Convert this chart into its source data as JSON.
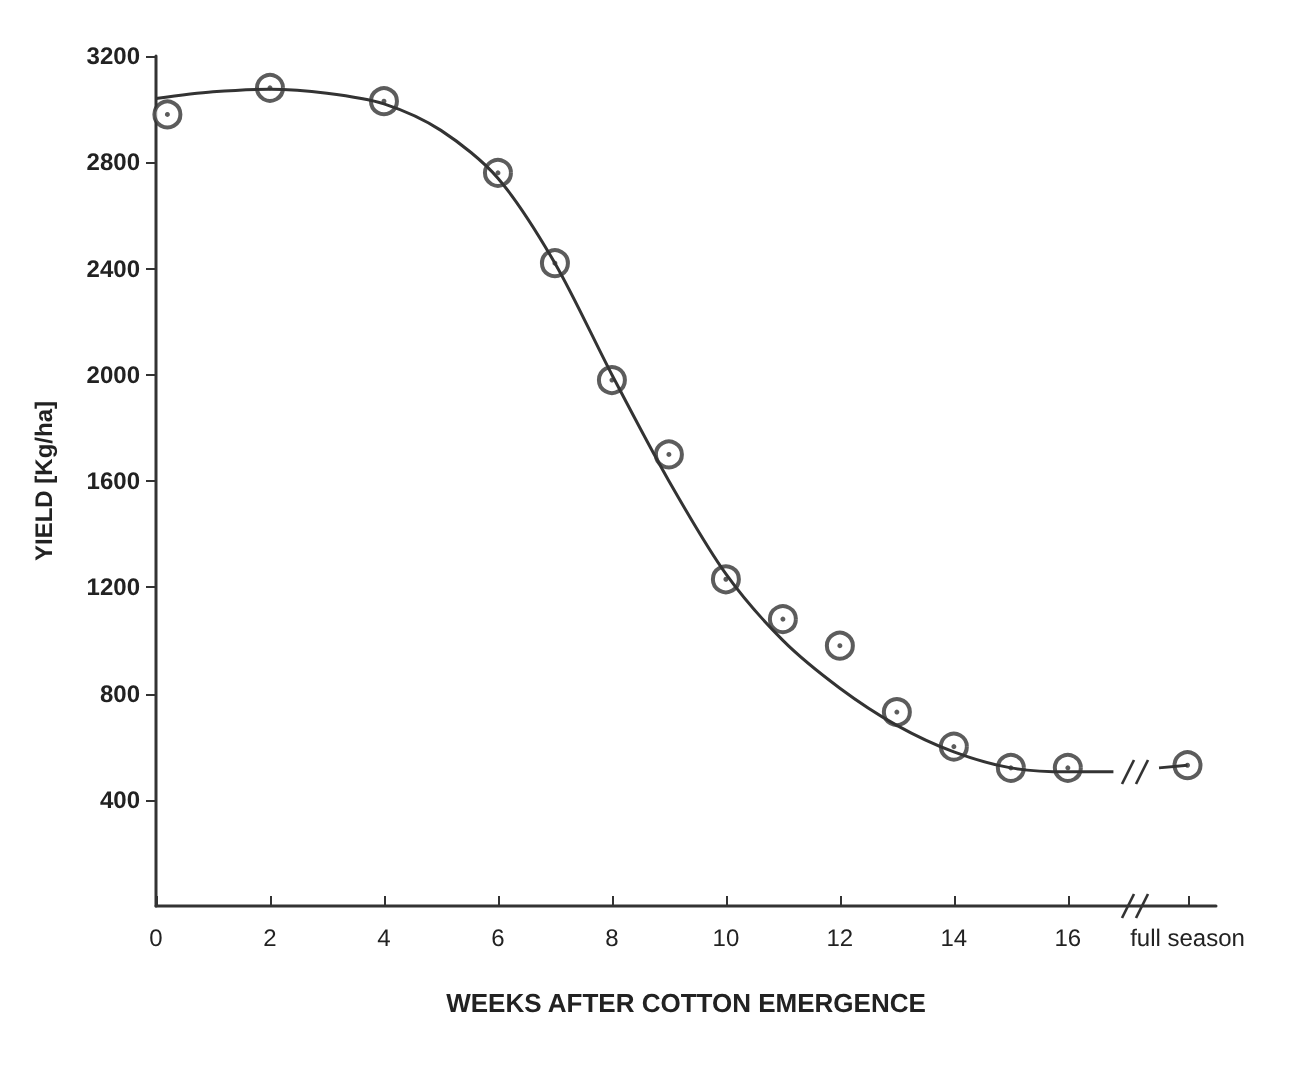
{
  "chart_data": {
    "type": "scatter",
    "xlabel": "WEEKS AFTER COTTON EMERGENCE",
    "ylabel": "YIELD [Kg/ha]",
    "xlim": [
      0,
      18.6
    ],
    "xticks": [
      0,
      2,
      4,
      6,
      8,
      10,
      12,
      14,
      16,
      {
        "value": 18.1,
        "label": "full season"
      }
    ],
    "ylim": [
      0,
      3200
    ],
    "yticks": [
      400,
      800,
      1200,
      1600,
      2000,
      2400,
      2800,
      3200
    ],
    "grid": false,
    "marker": "circle",
    "series": [
      {
        "color": "#333333",
        "x": [
          0.2,
          2,
          4,
          6,
          7,
          8,
          9,
          10,
          11,
          12,
          13,
          14,
          15,
          16,
          18.1
        ],
        "values": [
          2980,
          3080,
          3030,
          2760,
          2420,
          1980,
          1700,
          1230,
          1080,
          980,
          730,
          600,
          520,
          520,
          530
        ]
      },
      {
        "type": "line",
        "color": "#333333",
        "line_style": "solid",
        "marker": "none",
        "x": [
          0,
          1,
          2,
          3,
          4,
          5,
          6,
          7,
          8,
          9,
          10,
          11,
          12,
          13,
          14,
          15,
          16,
          16.8,
          17.2,
          17.6,
          18.1
        ],
        "values": [
          3040,
          3065,
          3075,
          3060,
          3020,
          2920,
          2740,
          2420,
          2000,
          1600,
          1250,
          1000,
          820,
          680,
          580,
          520,
          505,
          505,
          null,
          520,
          530
        ]
      }
    ]
  }
}
